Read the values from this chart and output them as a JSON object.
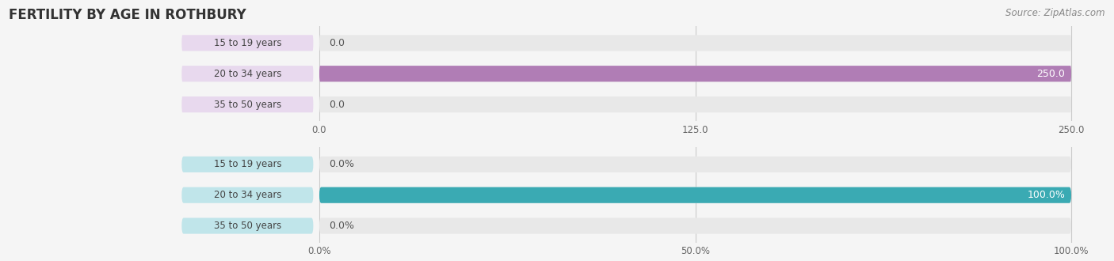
{
  "title": "FERTILITY BY AGE IN ROTHBURY",
  "source": "Source: ZipAtlas.com",
  "background_color": "#f5f5f5",
  "top_chart": {
    "categories": [
      "35 to 50 years",
      "20 to 34 years",
      "15 to 19 years"
    ],
    "values": [
      0.0,
      250.0,
      0.0
    ],
    "bar_color": "#b07db5",
    "label_bg": "#e8d9ee",
    "value_labels": [
      "0.0",
      "250.0",
      "0.0"
    ],
    "xlim": [
      0,
      250.0
    ],
    "xticks": [
      0.0,
      125.0,
      250.0
    ],
    "xtick_labels": [
      "0.0",
      "125.0",
      "250.0"
    ]
  },
  "bottom_chart": {
    "categories": [
      "35 to 50 years",
      "20 to 34 years",
      "15 to 19 years"
    ],
    "values": [
      0.0,
      100.0,
      0.0
    ],
    "bar_color": "#3aaab3",
    "label_bg": "#c0e5ea",
    "value_labels": [
      "0.0%",
      "100.0%",
      "0.0%"
    ],
    "xlim": [
      0,
      100.0
    ],
    "xticks": [
      0.0,
      50.0,
      100.0
    ],
    "xtick_labels": [
      "0.0%",
      "50.0%",
      "100.0%"
    ]
  }
}
